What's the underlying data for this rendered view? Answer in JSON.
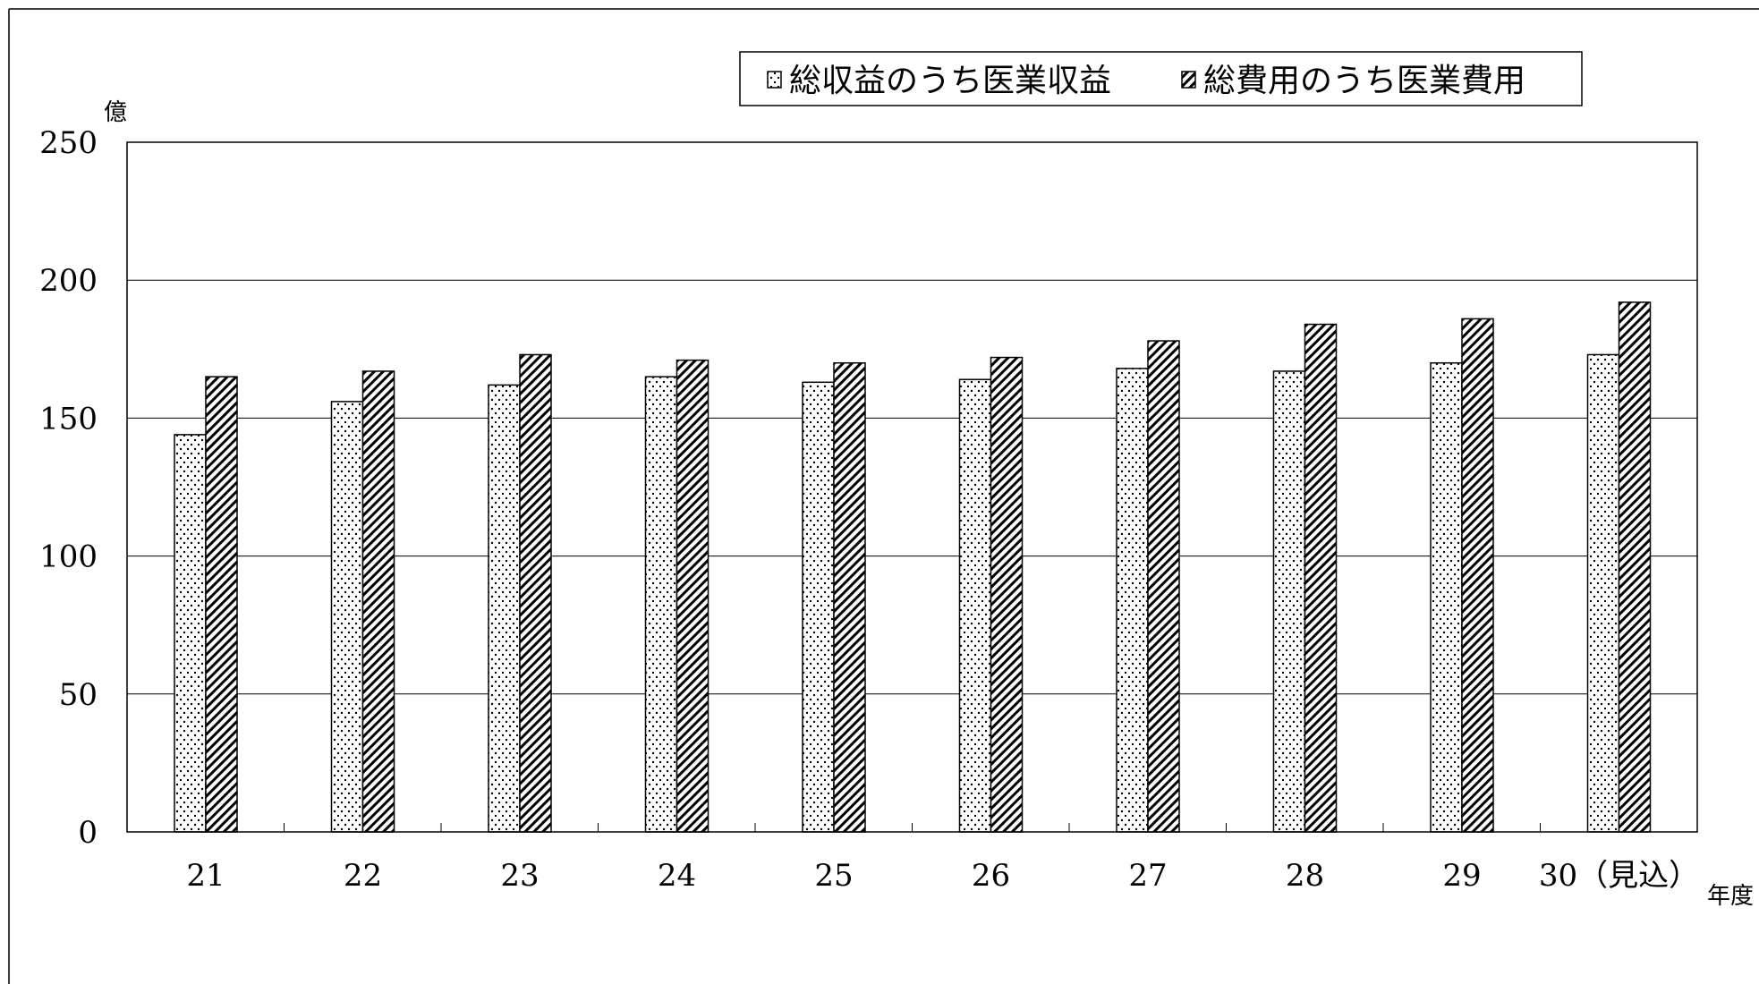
{
  "chart_data": {
    "type": "bar",
    "title": "",
    "xlabel": "年度",
    "ylabel": "億",
    "ylim": [
      0,
      250
    ],
    "yticks": [
      0,
      50,
      100,
      150,
      200,
      250
    ],
    "grid": true,
    "legend_position": "top-right",
    "categories": [
      "21",
      "22",
      "23",
      "24",
      "25",
      "26",
      "27",
      "28",
      "29",
      "30（見込）"
    ],
    "series": [
      {
        "name": "総収益のうち医業収益",
        "pattern": "dots",
        "values": [
          144,
          156,
          162,
          165,
          163,
          164,
          168,
          167,
          170,
          173
        ]
      },
      {
        "name": "総費用のうち医業費用",
        "pattern": "diagonal-hatch",
        "values": [
          165,
          167,
          173,
          171,
          170,
          172,
          178,
          184,
          186,
          192
        ]
      }
    ]
  },
  "colors": {
    "background": "#ffffff",
    "ink": "#000000",
    "gridline": "#000000"
  }
}
